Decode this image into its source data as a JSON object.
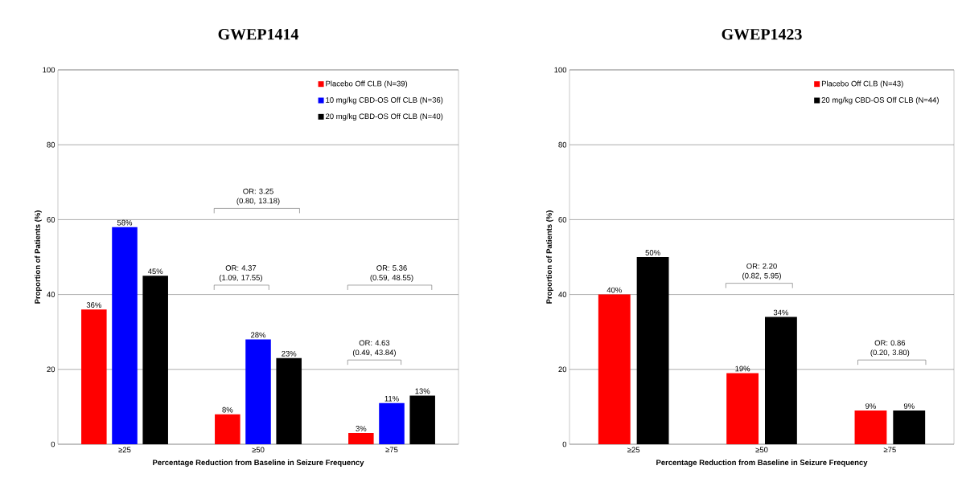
{
  "chart_data": [
    {
      "type": "bar",
      "title": "GWEP1414",
      "xlabel": "Percentage Reduction from Baseline in Seizure Frequency",
      "ylabel": "Proportion of Patients (%)",
      "categories": [
        "≥25",
        "≥50",
        "≥75"
      ],
      "series": [
        {
          "name": "Placebo Off CLB (N=39)",
          "color": "#ff0000",
          "values": [
            36,
            8,
            3
          ],
          "value_labels": [
            "36%",
            "8%",
            "3%"
          ]
        },
        {
          "name": "10 mg/kg CBD-OS Off CLB (N=36)",
          "color": "#0000ff",
          "values": [
            58,
            28,
            11
          ],
          "value_labels": [
            "58%",
            "28%",
            "11%"
          ]
        },
        {
          "name": "20 mg/kg CBD-OS Off CLB (N=40)",
          "color": "#000000",
          "values": [
            45,
            23,
            13
          ],
          "value_labels": [
            "45%",
            "23%",
            "13%"
          ]
        }
      ],
      "ylim": [
        0,
        100
      ],
      "yticks": [
        0,
        20,
        40,
        60,
        80,
        100
      ],
      "grid": "y",
      "legend": "top right",
      "annotations": [
        "OR: 3.25 (0.80, 13.18)",
        "OR: 4.37 (1.09, 17.55)",
        "OR: 5.36 (0.59, 48.55)",
        "OR: 4.63 (0.49, 43.84)"
      ]
    },
    {
      "type": "bar",
      "title": "GWEP1423",
      "xlabel": "Percentage Reduction from Baseline in Seizure Frequency",
      "ylabel": "Proportion of Patients (%)",
      "categories": [
        "≥25",
        "≥50",
        "≥75"
      ],
      "series": [
        {
          "name": "Placebo Off CLB (N=43)",
          "color": "#ff0000",
          "values": [
            40,
            19,
            9
          ],
          "value_labels": [
            "40%",
            "19%",
            "9%"
          ]
        },
        {
          "name": "20 mg/kg CBD-OS Off CLB (N=44)",
          "color": "#000000",
          "values": [
            50,
            34,
            9
          ],
          "value_labels": [
            "50%",
            "34%",
            "9%"
          ]
        }
      ],
      "ylim": [
        0,
        100
      ],
      "yticks": [
        0,
        20,
        40,
        60,
        80,
        100
      ],
      "grid": "y",
      "legend": "top right",
      "annotations": [
        "OR: 2.20 (0.82, 5.95)",
        "OR: 0.86 (0.20, 3.80)"
      ]
    }
  ]
}
